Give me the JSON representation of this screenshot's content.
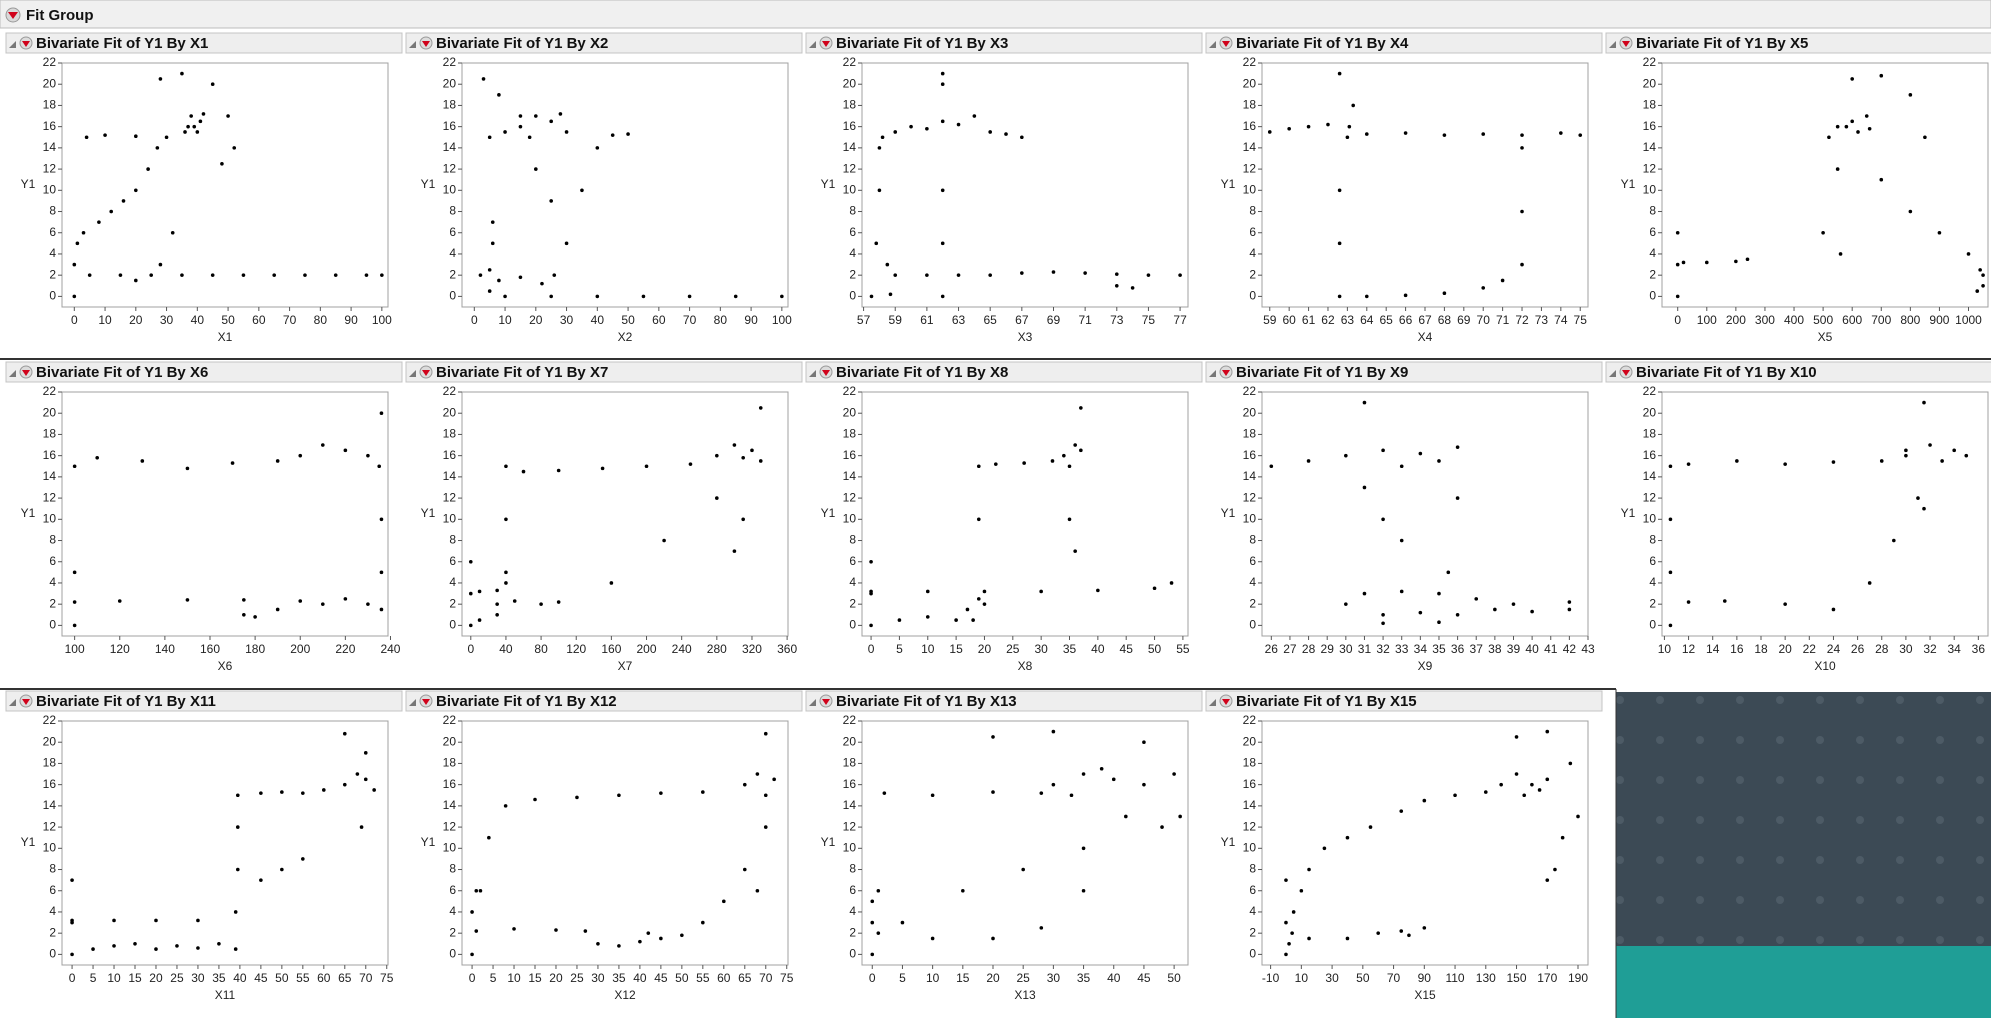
{
  "header": {
    "title": "Fit Group"
  },
  "chart_data": [
    {
      "type": "scatter",
      "title": "Bivariate Fit of Y1 By X1",
      "xlabel": "X1",
      "ylabel": "Y1",
      "color": "#000000",
      "x": [
        5,
        15,
        25,
        35,
        45,
        55,
        65,
        75,
        85,
        95,
        100,
        0,
        0,
        1,
        3,
        8,
        12,
        16,
        20,
        24,
        27,
        4,
        10,
        20,
        30,
        37,
        38,
        40,
        41,
        39,
        36,
        42,
        28,
        35,
        45,
        50,
        52,
        48,
        20,
        28,
        32
      ],
      "values": [
        2,
        2,
        2,
        2,
        2,
        2,
        2,
        2,
        2,
        2,
        2,
        0,
        3,
        5,
        6,
        7,
        8,
        9,
        10,
        12,
        14,
        15,
        15.2,
        15.1,
        15,
        16,
        17,
        15.5,
        16.5,
        16,
        15.5,
        17.2,
        20.5,
        21,
        20,
        17,
        14,
        12.5,
        1.5,
        3,
        6
      ],
      "xlim": [
        -4,
        102
      ],
      "ylim": [
        -1,
        22
      ],
      "xticks": [
        0,
        10,
        20,
        30,
        40,
        50,
        60,
        70,
        80,
        90,
        100
      ],
      "yticks": [
        0,
        2,
        4,
        6,
        8,
        10,
        12,
        14,
        16,
        18,
        20,
        22
      ]
    },
    {
      "type": "scatter",
      "title": "Bivariate Fit of Y1 By X2",
      "xlabel": "X2",
      "ylabel": "Y1",
      "color": "#000000",
      "x": [
        10,
        25,
        40,
        55,
        70,
        85,
        100,
        2,
        5,
        8,
        5,
        6,
        6,
        15,
        22,
        26,
        30,
        35,
        40,
        45,
        50,
        3,
        8,
        15,
        20,
        25,
        15,
        20,
        25,
        30,
        18,
        28,
        10,
        5
      ],
      "values": [
        0,
        0,
        0,
        0,
        0,
        0,
        0,
        2,
        2.5,
        1.5,
        0.5,
        5,
        7,
        1.8,
        1.2,
        2,
        5,
        10,
        14,
        15.2,
        15.3,
        20.5,
        19,
        17,
        12,
        9,
        16,
        17,
        16.5,
        15.5,
        15,
        17.2,
        15.5,
        15
      ],
      "xlim": [
        -4,
        102
      ],
      "ylim": [
        -1,
        22
      ],
      "xticks": [
        0,
        10,
        20,
        30,
        40,
        50,
        60,
        70,
        80,
        90,
        100
      ],
      "yticks": [
        0,
        2,
        4,
        6,
        8,
        10,
        12,
        14,
        16,
        18,
        20,
        22
      ]
    },
    {
      "type": "scatter",
      "title": "Bivariate Fit of Y1 By X3",
      "xlabel": "X3",
      "ylabel": "Y1",
      "color": "#000000",
      "x": [
        57.5,
        57.8,
        58,
        58,
        58.2,
        59,
        60,
        61,
        62,
        63,
        64,
        65,
        66,
        67,
        62,
        62,
        62,
        62,
        62,
        59,
        61,
        63,
        65,
        67,
        69,
        71,
        73,
        75,
        77,
        73,
        74,
        58.5,
        58.7
      ],
      "values": [
        0,
        5,
        10,
        14,
        15,
        15.5,
        16,
        15.8,
        16.5,
        16.2,
        17,
        15.5,
        15.3,
        15,
        0,
        5,
        10,
        20,
        21,
        2,
        2,
        2,
        2,
        2.2,
        2.3,
        2.2,
        2.1,
        2,
        2,
        1,
        0.8,
        3,
        0.2
      ],
      "xlim": [
        56.9,
        77.5
      ],
      "ylim": [
        -1,
        22
      ],
      "xticks": [
        57,
        59,
        61,
        63,
        65,
        67,
        69,
        71,
        73,
        75,
        77
      ],
      "yticks": [
        0,
        2,
        4,
        6,
        8,
        10,
        12,
        14,
        16,
        18,
        20,
        22
      ]
    },
    {
      "type": "scatter",
      "title": "Bivariate Fit of Y1 By X4",
      "xlabel": "X4",
      "ylabel": "Y1",
      "color": "#000000",
      "x": [
        59,
        60,
        61,
        62,
        62.6,
        62.6,
        62.6,
        62.6,
        63,
        64,
        66,
        68,
        70,
        72,
        74,
        75,
        64,
        66,
        68,
        70,
        71,
        72,
        72,
        72,
        63.3,
        63.1
      ],
      "values": [
        15.5,
        15.8,
        16,
        16.2,
        21,
        10,
        5,
        0,
        15,
        15.3,
        15.4,
        15.2,
        15.3,
        15.2,
        15.4,
        15.2,
        0,
        0.1,
        0.3,
        0.8,
        1.5,
        3,
        8,
        14,
        18,
        16
      ],
      "xlim": [
        58.6,
        75.4
      ],
      "ylim": [
        -1,
        22
      ],
      "xticks": [
        59,
        60,
        61,
        62,
        63,
        64,
        65,
        66,
        67,
        68,
        69,
        70,
        71,
        72,
        73,
        74,
        75
      ],
      "yticks": [
        0,
        2,
        4,
        6,
        8,
        10,
        12,
        14,
        16,
        18,
        20,
        22
      ]
    },
    {
      "type": "scatter",
      "title": "Bivariate Fit of Y1 By X5",
      "xlabel": "X5",
      "ylabel": "Y1",
      "color": "#000000",
      "x": [
        0,
        0,
        0,
        20,
        100,
        200,
        240,
        520,
        550,
        600,
        620,
        650,
        580,
        660,
        600,
        700,
        800,
        850,
        800,
        700,
        900,
        1000,
        1050,
        1030,
        1050,
        550,
        560,
        500,
        1040
      ],
      "values": [
        0,
        3,
        6,
        3.2,
        3.2,
        3.3,
        3.5,
        15,
        16,
        16.5,
        15.5,
        17,
        16,
        15.8,
        20.5,
        20.8,
        19,
        15,
        8,
        11,
        6,
        4,
        2,
        0.5,
        1,
        12,
        4,
        6,
        2.5
      ],
      "xlim": [
        -54,
        1067
      ],
      "ylim": [
        -1,
        22
      ],
      "xticks": [
        0,
        100,
        200,
        300,
        400,
        500,
        600,
        700,
        800,
        900,
        1000
      ],
      "yticks": [
        0,
        2,
        4,
        6,
        8,
        10,
        12,
        14,
        16,
        18,
        20,
        22
      ]
    },
    {
      "type": "scatter",
      "title": "Bivariate Fit of Y1 By X6",
      "xlabel": "X6",
      "ylabel": "Y1",
      "color": "#000000",
      "x": [
        100,
        100,
        100,
        110,
        130,
        150,
        170,
        190,
        200,
        210,
        220,
        230,
        235,
        236,
        236,
        236,
        100,
        120,
        150,
        175,
        175,
        180,
        190,
        200,
        210,
        220,
        230,
        236
      ],
      "values": [
        0,
        5,
        15,
        15.8,
        15.5,
        14.8,
        15.3,
        15.5,
        16,
        17,
        16.5,
        16,
        15,
        20,
        10,
        5,
        2.2,
        2.3,
        2.4,
        2.4,
        1,
        0.8,
        1.5,
        2.3,
        2,
        2.5,
        2,
        1.5
      ],
      "xlim": [
        94.4,
        238.9
      ],
      "ylim": [
        -1,
        22
      ],
      "xticks": [
        100,
        120,
        140,
        160,
        180,
        200,
        220,
        240
      ],
      "yticks": [
        0,
        2,
        4,
        6,
        8,
        10,
        12,
        14,
        16,
        18,
        20,
        22
      ]
    },
    {
      "type": "scatter",
      "title": "Bivariate Fit of Y1 By X7",
      "xlabel": "X7",
      "ylabel": "Y1",
      "color": "#000000",
      "x": [
        0,
        0,
        0,
        10,
        30,
        40,
        30,
        10,
        30,
        50,
        80,
        100,
        40,
        40,
        40,
        60,
        100,
        150,
        200,
        250,
        280,
        300,
        320,
        330,
        310,
        330,
        310,
        300,
        280,
        160,
        220
      ],
      "values": [
        0,
        3,
        6,
        3.2,
        3.3,
        4,
        1,
        0.5,
        2,
        2.3,
        2,
        2.2,
        5,
        10,
        15,
        14.5,
        14.6,
        14.8,
        15,
        15.2,
        16,
        17,
        16.5,
        15.5,
        15.8,
        20.5,
        10,
        7,
        12,
        4,
        8
      ],
      "xlim": [
        -10,
        361
      ],
      "ylim": [
        -1,
        22
      ],
      "xticks": [
        0,
        40,
        80,
        120,
        160,
        200,
        240,
        280,
        320,
        360
      ],
      "yticks": [
        0,
        2,
        4,
        6,
        8,
        10,
        12,
        14,
        16,
        18,
        20,
        22
      ]
    },
    {
      "type": "scatter",
      "title": "Bivariate Fit of Y1 By X8",
      "xlabel": "X8",
      "ylabel": "Y1",
      "color": "#000000",
      "x": [
        0,
        0,
        0,
        5,
        10,
        15,
        17,
        18,
        19,
        19,
        19,
        22,
        27,
        32,
        34,
        36,
        35,
        37,
        37,
        36,
        35,
        0,
        10,
        20,
        30,
        40,
        50,
        53,
        20
      ],
      "values": [
        0,
        3,
        6,
        0.5,
        0.8,
        0.5,
        1.5,
        0.5,
        2.5,
        10,
        15,
        15.2,
        15.3,
        15.5,
        16,
        17,
        15,
        16.5,
        20.5,
        7,
        10,
        3.2,
        3.2,
        3.2,
        3.2,
        3.3,
        3.5,
        4,
        2
      ],
      "xlim": [
        -1.6,
        55.9
      ],
      "ylim": [
        -1,
        22
      ],
      "xticks": [
        0,
        5,
        10,
        15,
        20,
        25,
        30,
        35,
        40,
        45,
        50,
        55
      ],
      "yticks": [
        0,
        2,
        4,
        6,
        8,
        10,
        12,
        14,
        16,
        18,
        20,
        22
      ]
    },
    {
      "type": "scatter",
      "title": "Bivariate Fit of Y1 By X9",
      "xlabel": "X9",
      "ylabel": "Y1",
      "color": "#000000",
      "x": [
        26,
        28,
        30,
        32,
        34,
        36,
        33,
        35,
        31,
        31,
        32,
        33,
        36,
        35.5,
        31,
        33,
        35,
        30,
        32,
        34,
        36,
        38,
        40,
        42,
        42,
        37,
        39,
        32,
        35
      ],
      "values": [
        15,
        15.5,
        16,
        16.5,
        16.2,
        16.8,
        15,
        15.5,
        21,
        13,
        10,
        8,
        12,
        5,
        3,
        3.2,
        3,
        2,
        1,
        1.2,
        1,
        1.5,
        1.3,
        1.5,
        2.2,
        2.5,
        2,
        0.2,
        0.3
      ],
      "xlim": [
        25.5,
        43
      ],
      "ylim": [
        -1,
        22
      ],
      "xticks": [
        26,
        27,
        28,
        29,
        30,
        31,
        32,
        33,
        34,
        35,
        36,
        37,
        38,
        39,
        40,
        41,
        42,
        43
      ],
      "yticks": [
        0,
        2,
        4,
        6,
        8,
        10,
        12,
        14,
        16,
        18,
        20,
        22
      ]
    },
    {
      "type": "scatter",
      "title": "Bivariate Fit of Y1 By X10",
      "xlabel": "X10",
      "ylabel": "Y1",
      "color": "#000000",
      "x": [
        10.5,
        10.5,
        10.5,
        10.5,
        12,
        16,
        20,
        24,
        28,
        30,
        32,
        34,
        35,
        31.5,
        31.5,
        31,
        29,
        27,
        24,
        20,
        15,
        12,
        30,
        33
      ],
      "values": [
        0,
        5,
        10,
        15,
        15.2,
        15.5,
        15.2,
        15.4,
        15.5,
        16,
        17,
        16.5,
        16,
        21,
        11,
        12,
        8,
        4,
        1.5,
        2,
        2.3,
        2.2,
        16.5,
        15.5
      ],
      "xlim": [
        9.8,
        36.8
      ],
      "ylim": [
        -1,
        22
      ],
      "xticks": [
        10,
        12,
        14,
        16,
        18,
        20,
        22,
        24,
        26,
        28,
        30,
        32,
        34,
        36
      ],
      "yticks": [
        0,
        2,
        4,
        6,
        8,
        10,
        12,
        14,
        16,
        18,
        20,
        22
      ]
    },
    {
      "type": "scatter",
      "title": "Bivariate Fit of Y1 By X11",
      "xlabel": "X11",
      "ylabel": "Y1",
      "color": "#000000",
      "x": [
        0,
        0,
        0,
        5,
        10,
        15,
        20,
        25,
        30,
        35,
        39,
        0,
        10,
        20,
        30,
        39,
        39.5,
        39.5,
        39.5,
        45,
        50,
        55,
        60,
        65,
        68,
        70,
        72,
        69,
        65,
        70,
        55,
        45,
        50
      ],
      "values": [
        0,
        3,
        7,
        0.5,
        0.8,
        1,
        0.5,
        0.8,
        0.6,
        1,
        0.5,
        3.2,
        3.2,
        3.2,
        3.2,
        4,
        8,
        12,
        15,
        15.2,
        15.3,
        15.2,
        15.5,
        16,
        17,
        16.5,
        15.5,
        12,
        20.8,
        19,
        9,
        7,
        8
      ],
      "xlim": [
        -2.4,
        75.3
      ],
      "ylim": [
        -1,
        22
      ],
      "xticks": [
        0,
        5,
        10,
        15,
        20,
        25,
        30,
        35,
        40,
        45,
        50,
        55,
        60,
        65,
        70,
        75
      ],
      "yticks": [
        0,
        2,
        4,
        6,
        8,
        10,
        12,
        14,
        16,
        18,
        20,
        22
      ]
    },
    {
      "type": "scatter",
      "title": "Bivariate Fit of Y1 By X12",
      "xlabel": "X12",
      "ylabel": "Y1",
      "color": "#000000",
      "x": [
        0,
        0,
        1,
        1,
        10,
        20,
        27,
        30,
        35,
        40,
        42,
        45,
        50,
        55,
        60,
        65,
        68,
        70,
        2,
        4,
        8,
        15,
        25,
        35,
        45,
        55,
        65,
        68,
        72,
        70,
        70
      ],
      "values": [
        0,
        4,
        6,
        2.2,
        2.4,
        2.3,
        2.2,
        1,
        0.8,
        1.2,
        2,
        1.5,
        1.8,
        3,
        5,
        8,
        6,
        12,
        6,
        11,
        14,
        14.6,
        14.8,
        15,
        15.2,
        15.3,
        16,
        17,
        16.5,
        15,
        20.8
      ],
      "xlim": [
        -2.4,
        75.3
      ],
      "ylim": [
        -1,
        22
      ],
      "xticks": [
        0,
        5,
        10,
        15,
        20,
        25,
        30,
        35,
        40,
        45,
        50,
        55,
        60,
        65,
        70,
        75
      ],
      "yticks": [
        0,
        2,
        4,
        6,
        8,
        10,
        12,
        14,
        16,
        18,
        20,
        22
      ]
    },
    {
      "type": "scatter",
      "title": "Bivariate Fit of Y1 By X13",
      "xlabel": "X13",
      "ylabel": "Y1",
      "color": "#000000",
      "x": [
        0,
        0,
        0,
        1,
        2,
        10,
        20,
        28,
        30,
        35,
        40,
        45,
        33,
        38,
        20,
        30,
        45,
        50,
        51,
        48,
        35,
        25,
        15,
        5,
        1,
        10,
        20,
        28,
        35,
        42
      ],
      "values": [
        0,
        3,
        5,
        6,
        15.2,
        15,
        15.3,
        15.2,
        16,
        17,
        16.5,
        16,
        15,
        17.5,
        20.5,
        21,
        20,
        17,
        13,
        12,
        10,
        8,
        6,
        3,
        2,
        1.5,
        1.5,
        2.5,
        6,
        13
      ],
      "xlim": [
        -1.7,
        52.3
      ],
      "ylim": [
        -1,
        22
      ],
      "xticks": [
        0,
        5,
        10,
        15,
        20,
        25,
        30,
        35,
        40,
        45,
        50
      ],
      "yticks": [
        0,
        2,
        4,
        6,
        8,
        10,
        12,
        14,
        16,
        18,
        20,
        22
      ]
    },
    {
      "type": "scatter",
      "title": "Bivariate Fit of Y1 By X15",
      "xlabel": "X15",
      "ylabel": "Y1",
      "color": "#000000",
      "x": [
        0,
        2,
        4,
        0,
        5,
        10,
        0,
        15,
        25,
        40,
        55,
        75,
        90,
        110,
        130,
        140,
        150,
        160,
        170,
        155,
        165,
        150,
        170,
        185,
        190,
        180,
        175,
        170,
        15,
        40,
        60,
        75,
        90,
        80
      ],
      "values": [
        0,
        1,
        2,
        3,
        4,
        6,
        7,
        8,
        10,
        11,
        12,
        13.5,
        14.5,
        15,
        15.3,
        16,
        17,
        16,
        16.5,
        15,
        15.5,
        20.5,
        21,
        18,
        13,
        11,
        8,
        7,
        1.5,
        1.5,
        2,
        2.2,
        2.5,
        1.8
      ],
      "xlim": [
        -15.6,
        196.5
      ],
      "ylim": [
        -1,
        22
      ],
      "xticks": [
        -10,
        10,
        30,
        50,
        70,
        90,
        110,
        130,
        150,
        170,
        190
      ],
      "yticks": [
        0,
        2,
        4,
        6,
        8,
        10,
        12,
        14,
        16,
        18,
        20,
        22
      ]
    }
  ]
}
